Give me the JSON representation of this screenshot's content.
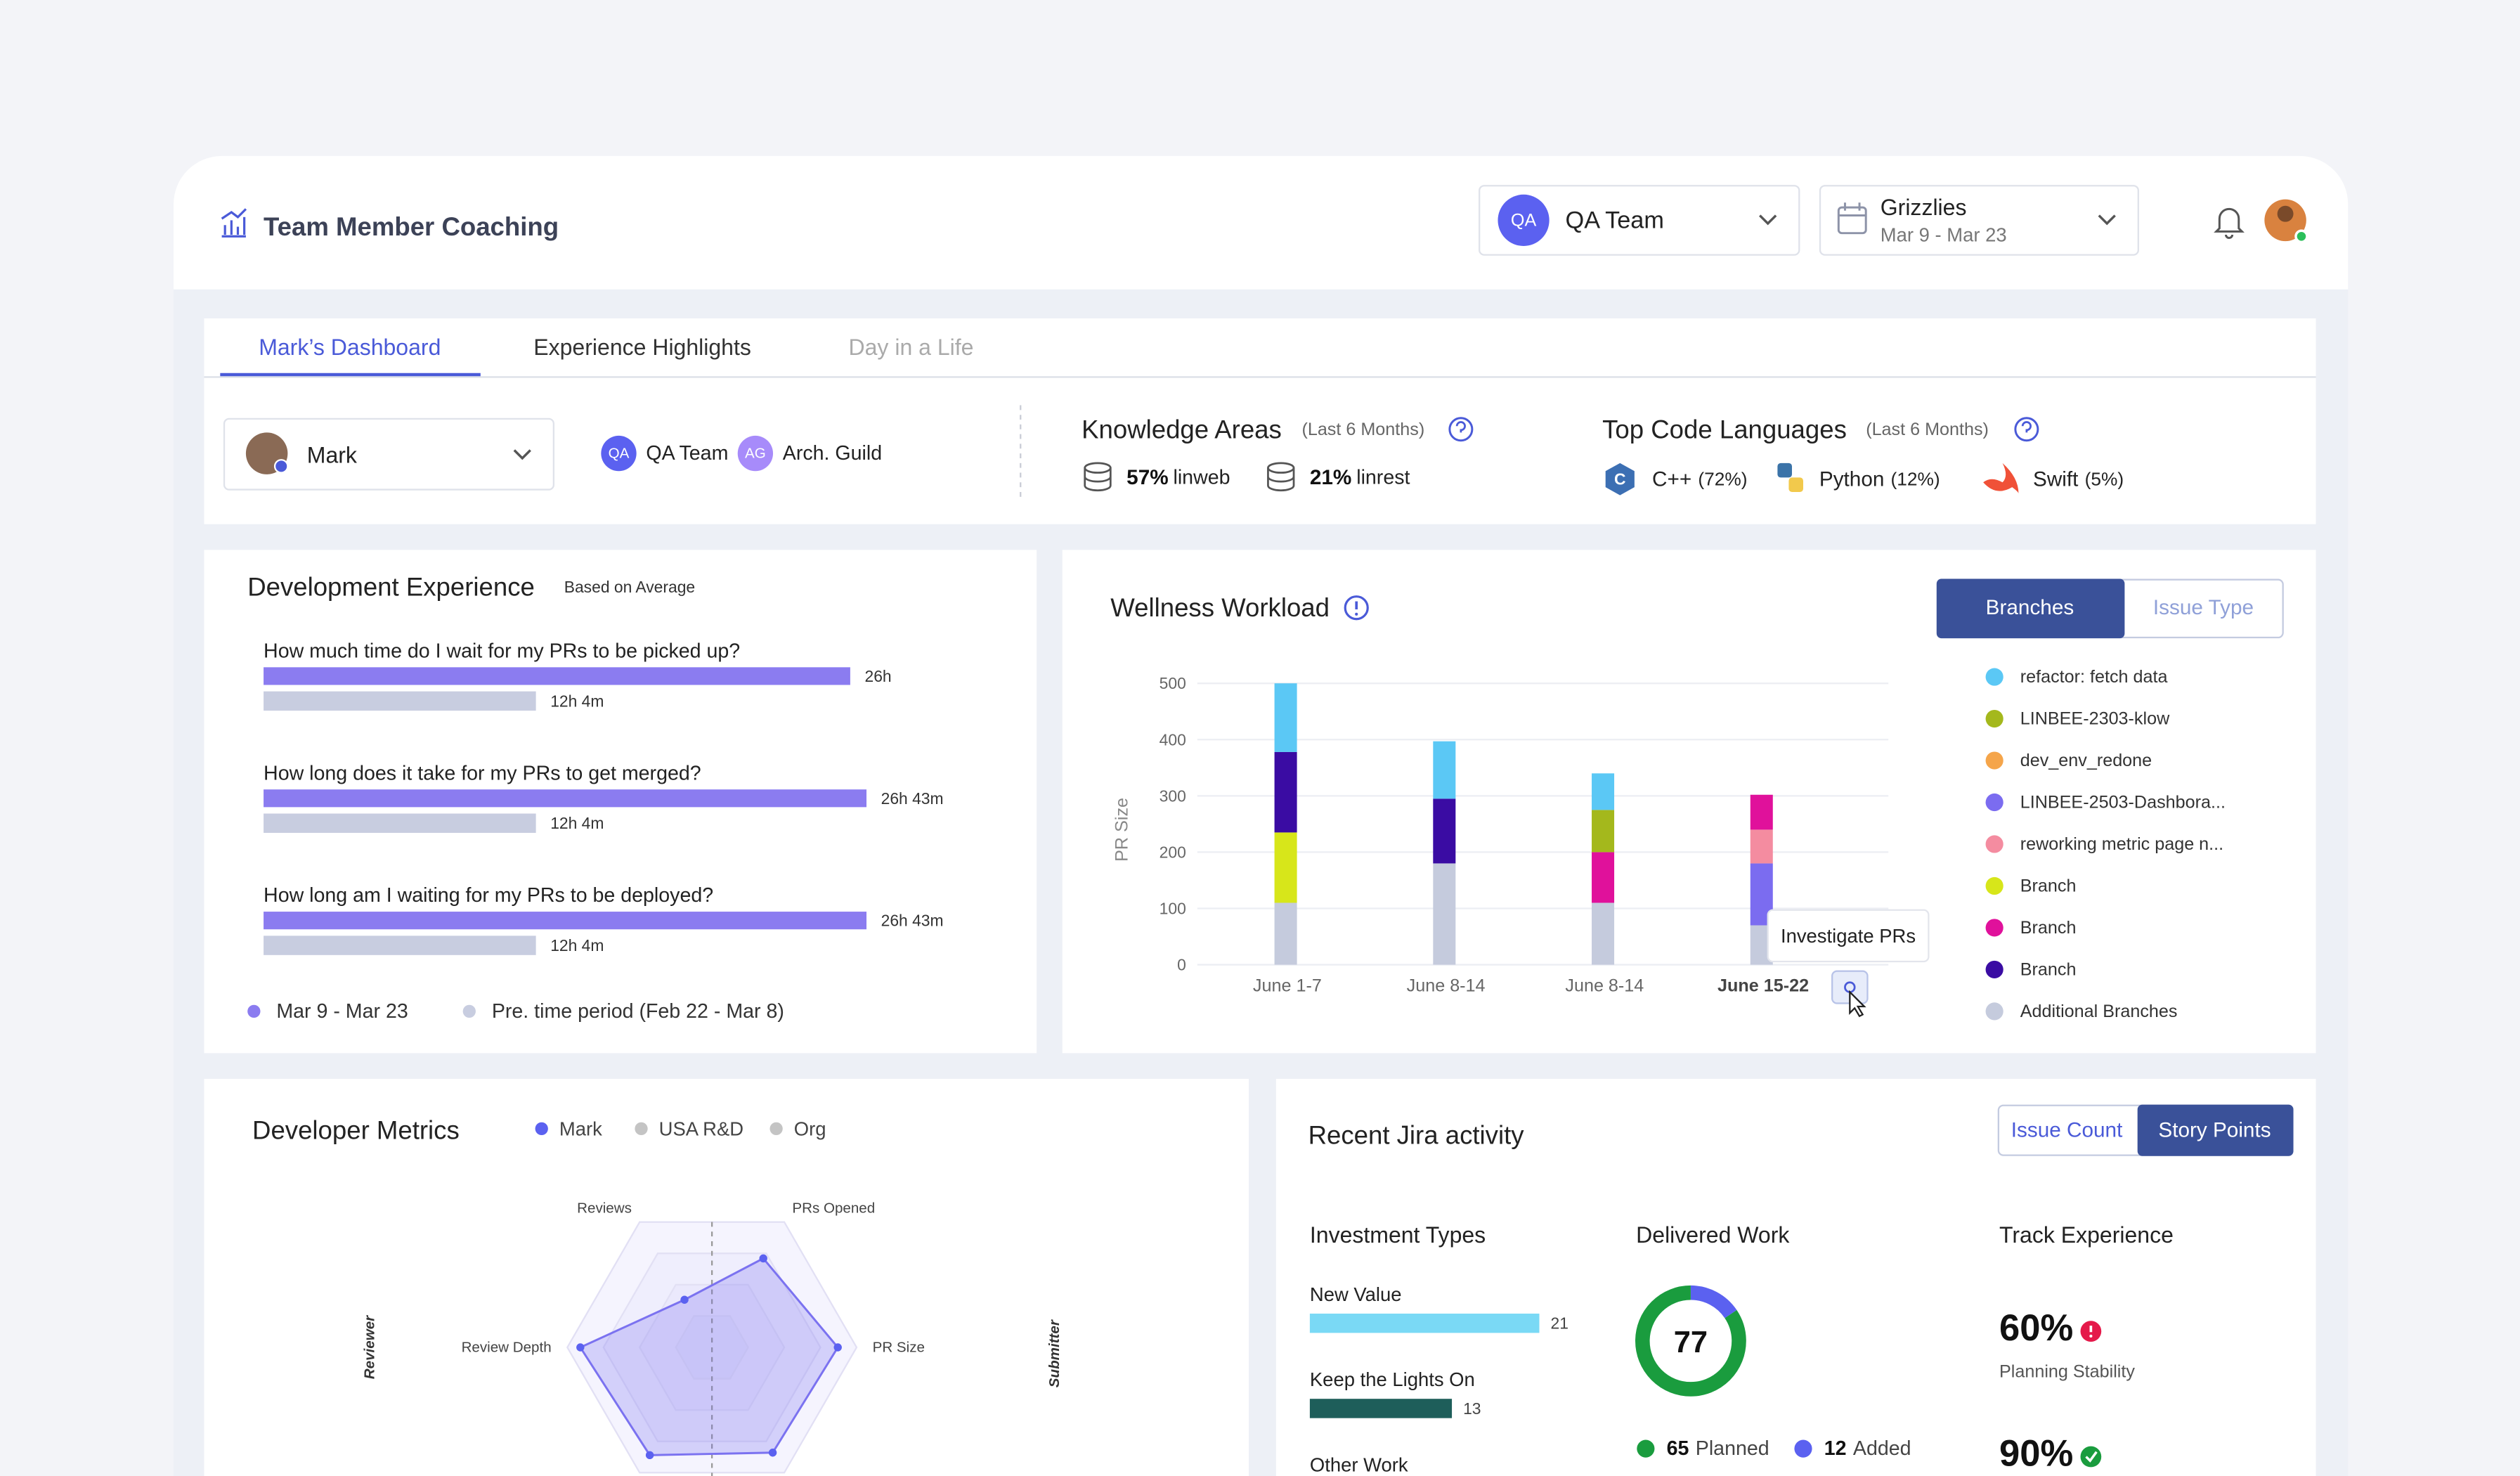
{
  "header": {
    "title": "Team Member Coaching",
    "team": {
      "badge": "QA",
      "name": "QA Team"
    },
    "sprint": {
      "name": "Grizzlies",
      "dates": "Mar 9 - Mar 23"
    }
  },
  "tabs": [
    "Mark’s Dashboard",
    "Experience Highlights",
    "Day in a Life"
  ],
  "profile": {
    "name": "Mark",
    "groups": [
      {
        "badge": "QA",
        "name": "QA Team",
        "color": "#5b61f0"
      },
      {
        "badge": "AG",
        "name": "Arch. Guild",
        "color": "#a78bfa"
      }
    ]
  },
  "knowledge_areas": {
    "title": "Knowledge Areas",
    "period": "(Last 6 Months)",
    "items": [
      {
        "value": "57%",
        "name": "linweb"
      },
      {
        "value": "21%",
        "name": "linrest"
      }
    ]
  },
  "top_code_languages": {
    "title": "Top Code Languages",
    "period": "(Last 6 Months)",
    "items": [
      {
        "name": "C++",
        "share": "(72%)"
      },
      {
        "name": "Python",
        "share": "(12%)"
      },
      {
        "name": "Swift",
        "share": "(5%)"
      }
    ]
  },
  "development_experience": {
    "title": "Development Experience",
    "note": "Based on Average",
    "colors": [
      "#8b7cf0",
      "#c8cde0"
    ],
    "legend": [
      "Mar 9 - Mar 23",
      "Pre. time period (Feb 22 - Mar 8)"
    ],
    "questions": [
      {
        "text": "How much time do I wait for my PRs to be picked up?",
        "values": [
          26,
          12.07
        ],
        "value_labels": [
          "26h",
          "12h 4m"
        ]
      },
      {
        "text": "How long does it take for my PRs to get merged?",
        "values": [
          26.72,
          12.07
        ],
        "value_labels": [
          "26h 43m",
          "12h 4m"
        ]
      },
      {
        "text": "How long am I waiting for my PRs to be deployed?",
        "values": [
          26.72,
          12.07
        ],
        "value_labels": [
          "26h 43m",
          "12h 4m"
        ]
      }
    ]
  },
  "wellness_workload": {
    "title": "Wellness Workload",
    "toggle": [
      "Branches",
      "Issue Type"
    ],
    "tooltip": "Investigate PRs",
    "chart_data": {
      "type": "bar",
      "stacked": true,
      "ylabel": "PR Size",
      "categories": [
        "June 1-7",
        "June 8-14",
        "June 8-14",
        "June 15-22"
      ],
      "ylim": [
        0,
        500
      ],
      "yticks": [
        0,
        100,
        200,
        300,
        400,
        500
      ],
      "grid": true,
      "series": [
        {
          "name": "refactor: fetch data",
          "color": "#5bc8f5",
          "values": [
            122,
            102,
            65,
            null
          ]
        },
        {
          "name": "LINBEE-2303-klow",
          "color": "#a4b81c",
          "values": [
            null,
            null,
            75,
            null
          ]
        },
        {
          "name": "dev_env_redone",
          "color": "#f5a54a",
          "values": [
            null,
            null,
            null,
            null
          ]
        },
        {
          "name": "LINBEE-2503-Dashbora...",
          "color": "#7b6cf0",
          "values": [
            null,
            null,
            null,
            110
          ]
        },
        {
          "name": "reworking metric page n...",
          "color": "#f48ca0",
          "values": [
            null,
            null,
            null,
            60
          ]
        },
        {
          "name": "Branch",
          "color": "#d7e61a",
          "values": [
            125,
            null,
            null,
            null
          ]
        },
        {
          "name": "Branch",
          "color": "#e0119b",
          "values": [
            null,
            null,
            90,
            62
          ]
        },
        {
          "name": "Branch",
          "color": "#3a0ca3",
          "values": [
            143,
            115,
            null,
            null
          ]
        },
        {
          "name": "Additional Branches",
          "color": "#c5cbdd",
          "values": [
            110,
            180,
            110,
            70
          ]
        }
      ]
    }
  },
  "developer_metrics": {
    "title": "Developer Metrics",
    "side_labels": [
      "Reviewer",
      "Submitter"
    ],
    "chart_data": {
      "type": "radar",
      "categories": [
        "PRs Opened",
        "PR Size",
        null,
        null,
        "Review Depth",
        "Reviews"
      ],
      "rlim": [
        0,
        100
      ],
      "series": [
        {
          "name": "Mark",
          "color": "#5b61f0",
          "values": [
            71,
            87,
            84,
            86,
            91,
            38
          ]
        },
        {
          "name": "USA R&D",
          "color": "#c4c4c4",
          "values": [
            null,
            null,
            null,
            null,
            null,
            null
          ]
        },
        {
          "name": "Org",
          "color": "#c4c4c4",
          "values": [
            null,
            null,
            null,
            null,
            null,
            null
          ]
        }
      ]
    }
  },
  "jira": {
    "title": "Recent Jira activity",
    "toggle": [
      "Issue Count",
      "Story Points"
    ],
    "investment_types": {
      "title": "Investment Types",
      "categories": [
        "New Value",
        "Keep the Lights On",
        "Other Work"
      ],
      "values": [
        21,
        13,
        null
      ],
      "colors": [
        "#7ad9f5",
        "#1e5e5a",
        "#8b7cf0"
      ]
    },
    "delivered_work": {
      "title": "Delivered Work",
      "total": 77,
      "items": [
        {
          "value": 65,
          "label": "Planned",
          "color": "#1a9c3e"
        },
        {
          "value": 12,
          "label": "Added",
          "color": "#5b61f0"
        }
      ]
    },
    "track_experience": {
      "title": "Track Experience",
      "metrics": [
        {
          "value": "60%",
          "label": "Planning Stability",
          "status": "warning"
        },
        {
          "value": "90%",
          "status": "ok"
        }
      ]
    }
  }
}
